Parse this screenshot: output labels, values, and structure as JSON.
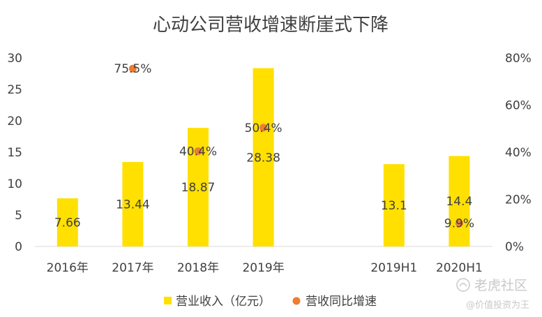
{
  "chart_data": {
    "type": "bar",
    "title": "心动公司营收增速断崖式下降",
    "categories": [
      "2016年",
      "2017年",
      "2018年",
      "2019年",
      "",
      "2019H1",
      "2020H1"
    ],
    "series": [
      {
        "name": "营业收入（亿元）",
        "type": "bar",
        "axis": "left",
        "color": "#FFE000",
        "values": [
          7.66,
          13.44,
          18.87,
          28.38,
          null,
          13.1,
          14.4
        ],
        "labels": [
          "7.66",
          "13.44",
          "18.87",
          "28.38",
          "",
          "13.1",
          "14.4"
        ]
      },
      {
        "name": "营收同比增速",
        "type": "scatter",
        "axis": "right",
        "color": "#ED7D31",
        "values": [
          null,
          75.5,
          40.4,
          50.4,
          null,
          null,
          9.9
        ],
        "labels": [
          "",
          "75.5%",
          "40.4%",
          "50.4%",
          "",
          "",
          "9.9%"
        ]
      }
    ],
    "y_left": {
      "range": [
        0,
        30
      ],
      "ticks": [
        "0",
        "5",
        "10",
        "15",
        "20",
        "25",
        "30"
      ]
    },
    "y_right": {
      "range": [
        0,
        80
      ],
      "ticks": [
        "0%",
        "20%",
        "40%",
        "60%",
        "80%"
      ]
    },
    "grid": false,
    "legend": "bottom"
  },
  "watermark": {
    "brand": "老虎社区",
    "handle": "@价值投资为王"
  }
}
